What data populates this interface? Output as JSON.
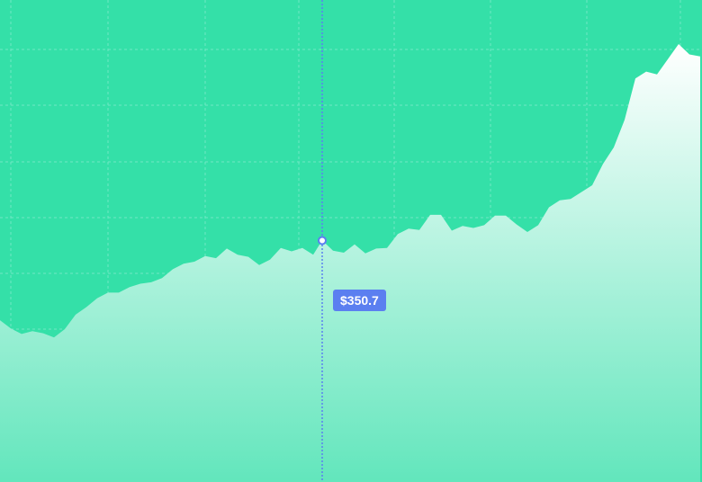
{
  "colors": {
    "background": "#34e0a8",
    "grid": "#6fe8c4",
    "area_top": "#ffffff",
    "area_bottom": "#62e6bc",
    "crosshair": "#5b7ff0",
    "tooltip_bg": "#5b7ff0",
    "tooltip_text": "#ffffff"
  },
  "tooltip": {
    "text": "$350.7",
    "marker_color": "#ffffff"
  },
  "chart_data": {
    "type": "area",
    "title": "",
    "xlabel": "",
    "ylabel": "",
    "grid": true,
    "ylim": [
      0,
      700
    ],
    "x": [
      0,
      12,
      24,
      36,
      48,
      60,
      72,
      84,
      96,
      108,
      120,
      132,
      144,
      156,
      168,
      180,
      192,
      204,
      216,
      228,
      240,
      252,
      264,
      276,
      288,
      300,
      312,
      324,
      336,
      348,
      358,
      370,
      382,
      394,
      406,
      418,
      430,
      442,
      454,
      466,
      478,
      490,
      502,
      514,
      526,
      538,
      550,
      562,
      574,
      586,
      598,
      610,
      622,
      634,
      646,
      658,
      670,
      682,
      694,
      706,
      718,
      730,
      742,
      754,
      766,
      778
    ],
    "values": [
      235,
      223,
      215,
      219,
      216,
      210,
      222,
      243,
      254,
      267,
      275,
      275,
      283,
      288,
      290,
      296,
      309,
      317,
      320,
      328,
      325,
      339,
      330,
      327,
      315,
      323,
      340,
      335,
      340,
      330,
      351,
      336,
      333,
      345,
      332,
      339,
      340,
      360,
      368,
      366,
      388,
      388,
      365,
      372,
      369,
      373,
      387,
      387,
      374,
      363,
      373,
      399,
      409,
      411,
      421,
      431,
      462,
      486,
      526,
      586,
      596,
      592,
      614,
      636,
      621,
      618
    ],
    "highlight": {
      "x": 358,
      "value": 350.7,
      "label": "$350.7"
    }
  }
}
